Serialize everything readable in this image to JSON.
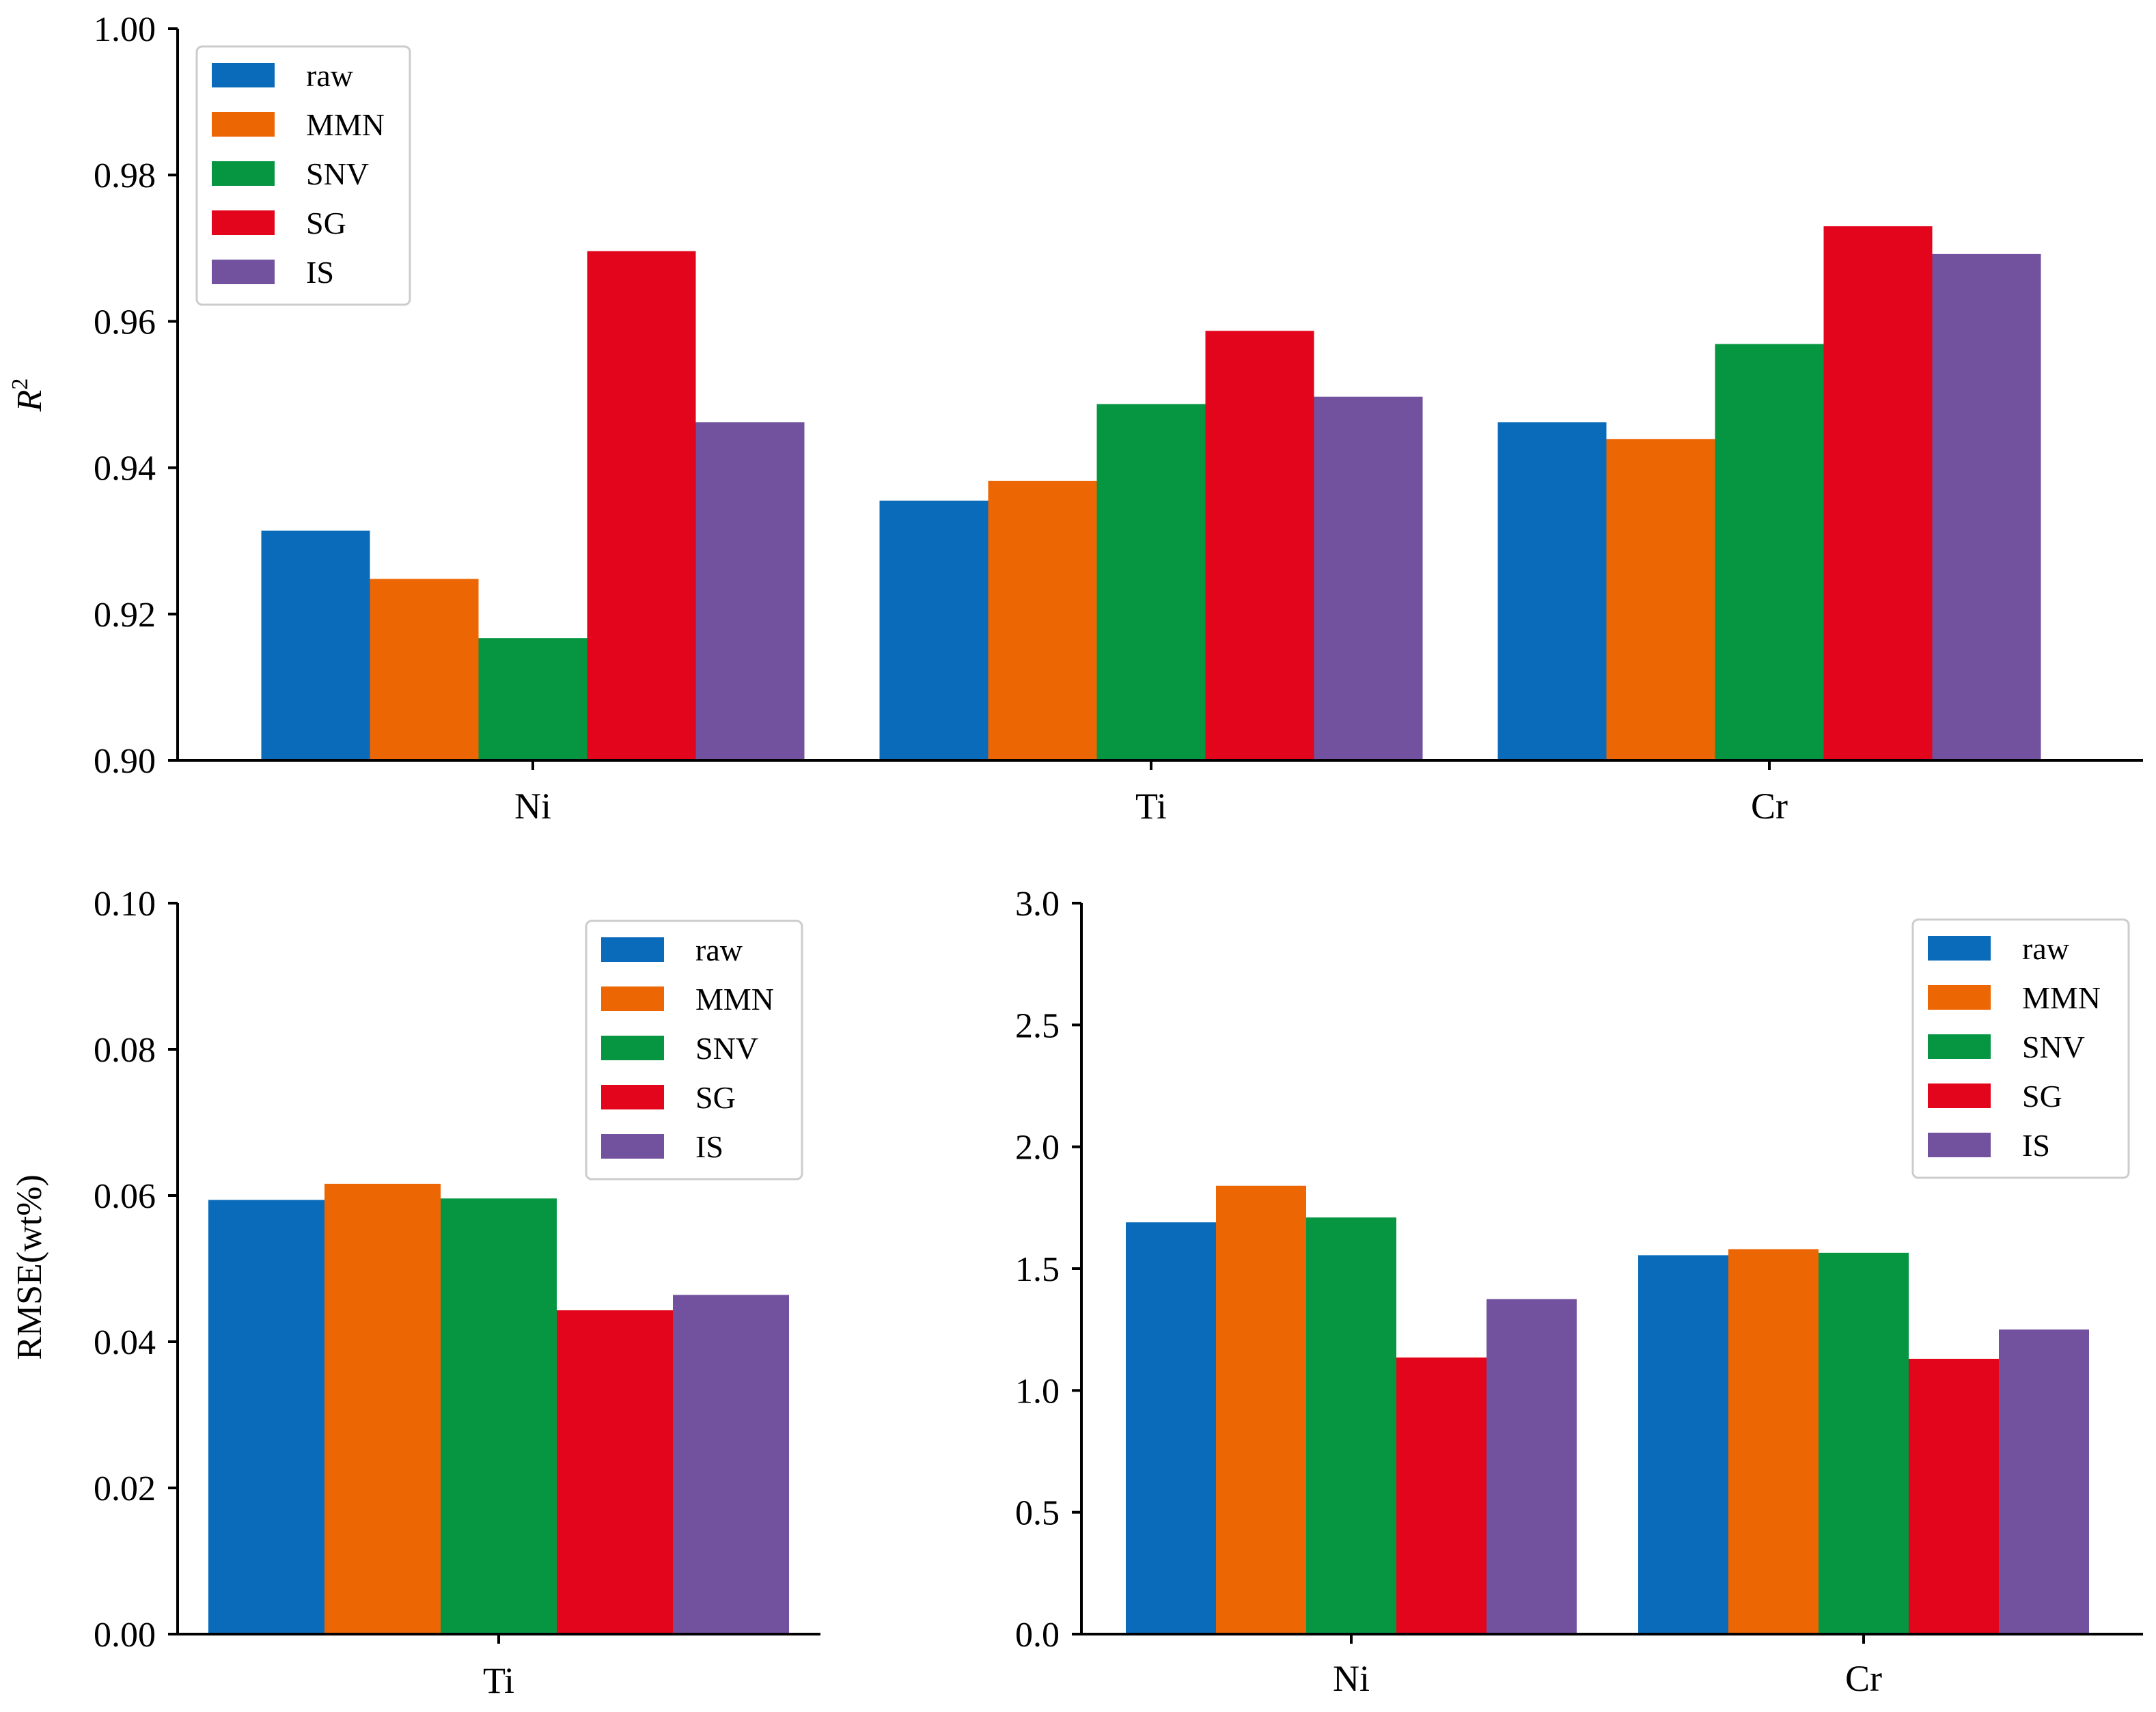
{
  "chart_data": [
    {
      "type": "bar",
      "categories": [
        "Ni",
        "Ti",
        "Cr"
      ],
      "series": [
        {
          "name": "raw",
          "color": "#0a6bba",
          "values": [
            0.9314,
            0.9355,
            0.9462
          ]
        },
        {
          "name": "MMN",
          "color": "#ec6603",
          "values": [
            0.9248,
            0.9382,
            0.9439
          ]
        },
        {
          "name": "SNV",
          "color": "#069642",
          "values": [
            0.9167,
            0.9487,
            0.9569
          ]
        },
        {
          "name": "SG",
          "color": "#e2051b",
          "values": [
            0.9696,
            0.9587,
            0.973
          ]
        },
        {
          "name": "IS",
          "color": "#72519e",
          "values": [
            0.9462,
            0.9497,
            0.9692
          ]
        }
      ],
      "ylabel": "R²",
      "ylabel_main": "R",
      "ylabel_sup": "2",
      "ylim": [
        0.9,
        1.0
      ],
      "yticks": [
        "0.90",
        "0.92",
        "0.94",
        "0.96",
        "0.98",
        "1.00"
      ],
      "legend": "top-left"
    },
    {
      "type": "bar",
      "categories": [
        "Ti"
      ],
      "series": [
        {
          "name": "raw",
          "color": "#0a6bba",
          "values": [
            0.0594
          ]
        },
        {
          "name": "MMN",
          "color": "#ec6603",
          "values": [
            0.0616
          ]
        },
        {
          "name": "SNV",
          "color": "#069642",
          "values": [
            0.0596
          ]
        },
        {
          "name": "SG",
          "color": "#e2051b",
          "values": [
            0.0443
          ]
        },
        {
          "name": "IS",
          "color": "#72519e",
          "values": [
            0.0464
          ]
        }
      ],
      "ylabel": "RMSE(wt%)",
      "ylim": [
        0.0,
        0.1
      ],
      "yticks": [
        "0.00",
        "0.02",
        "0.04",
        "0.06",
        "0.08",
        "0.10"
      ],
      "legend": "top-right"
    },
    {
      "type": "bar",
      "categories": [
        "Ni",
        "Cr"
      ],
      "series": [
        {
          "name": "raw",
          "color": "#0a6bba",
          "values": [
            1.69,
            1.555
          ]
        },
        {
          "name": "MMN",
          "color": "#ec6603",
          "values": [
            1.84,
            1.58
          ]
        },
        {
          "name": "SNV",
          "color": "#069642",
          "values": [
            1.71,
            1.565
          ]
        },
        {
          "name": "SG",
          "color": "#e2051b",
          "values": [
            1.135,
            1.13
          ]
        },
        {
          "name": "IS",
          "color": "#72519e",
          "values": [
            1.375,
            1.25
          ]
        }
      ],
      "ylabel": "",
      "ylim": [
        0.0,
        3.0
      ],
      "yticks": [
        "0.0",
        "0.5",
        "1.0",
        "1.5",
        "2.0",
        "2.5",
        "3.0"
      ],
      "legend": "top-right"
    }
  ]
}
